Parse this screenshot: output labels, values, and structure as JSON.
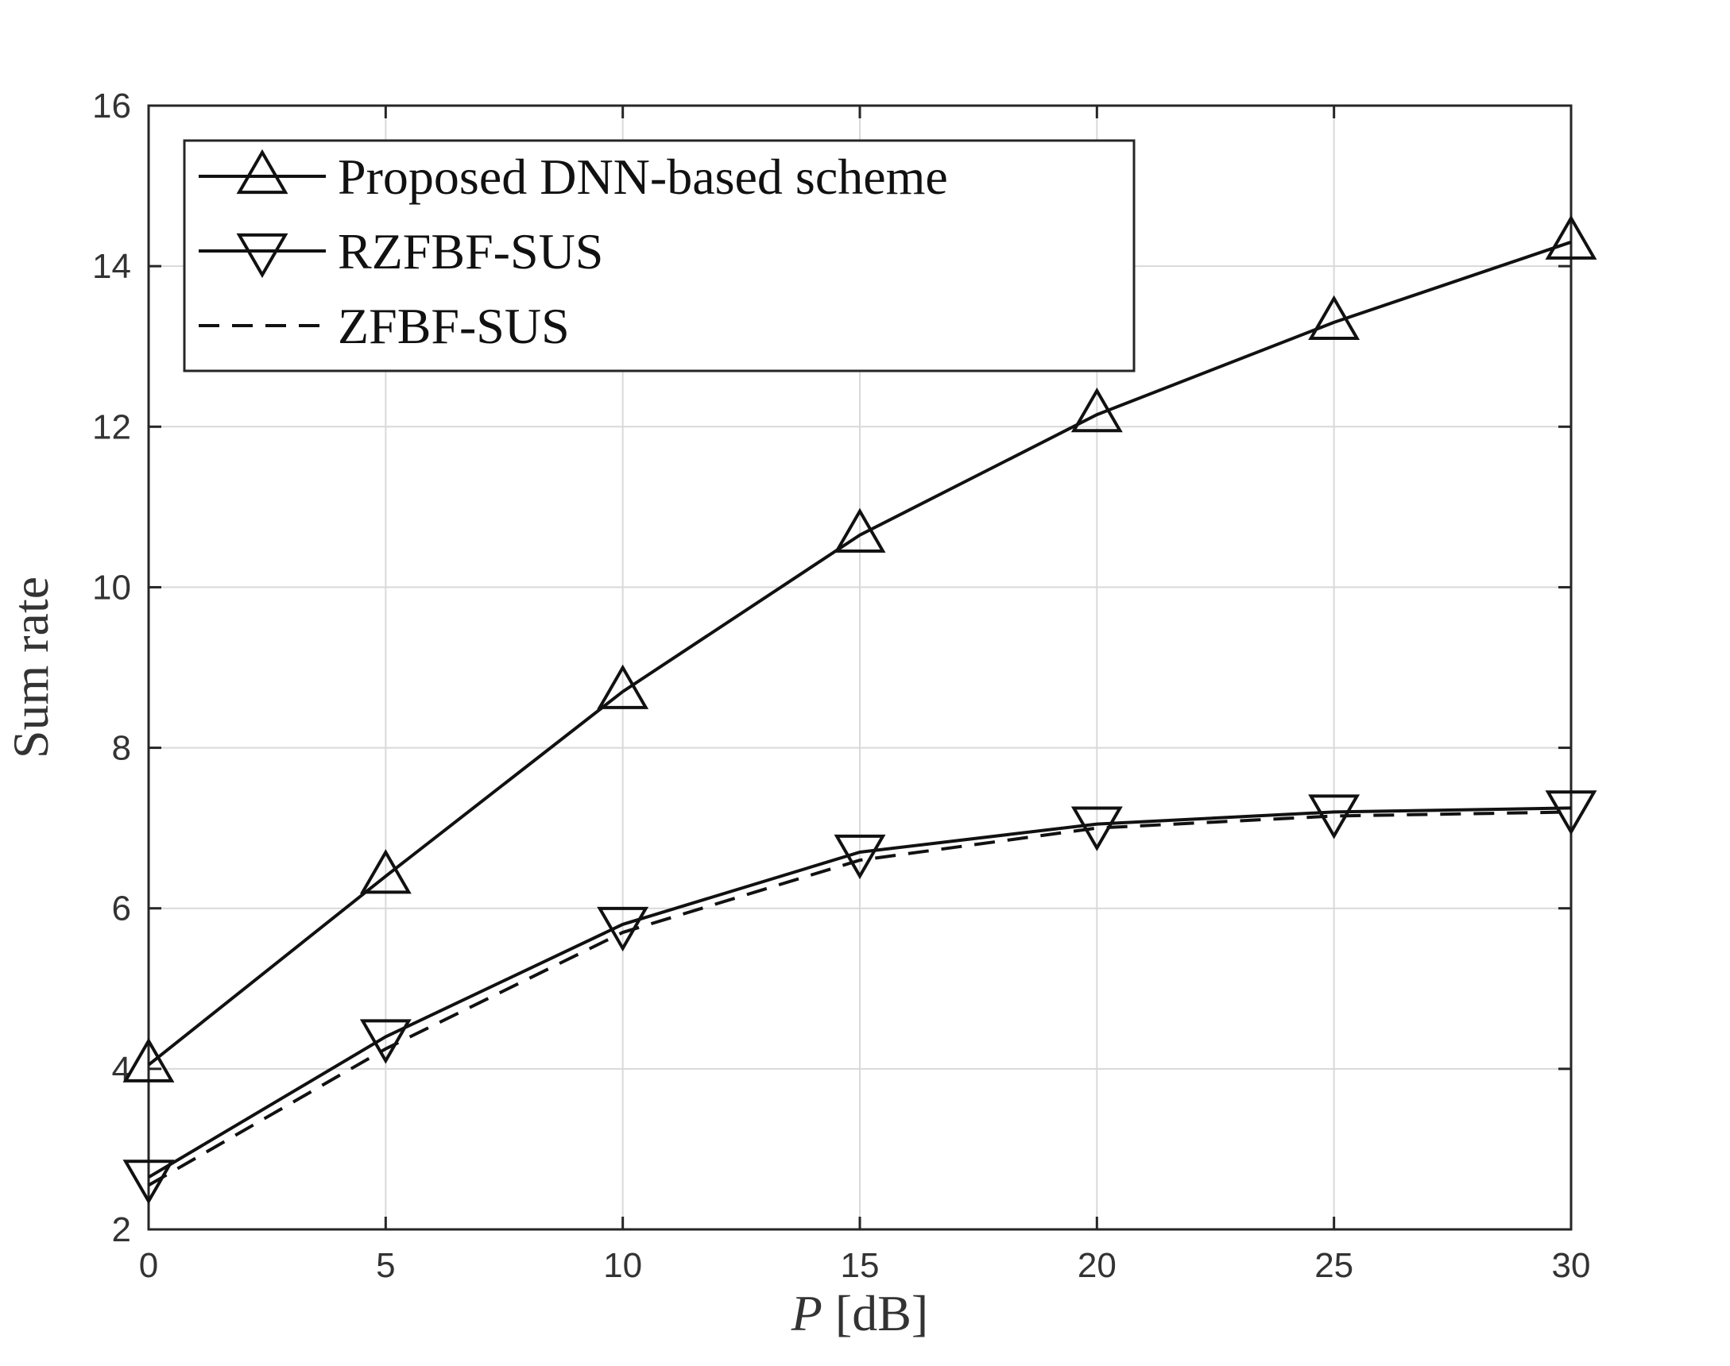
{
  "chart_data": {
    "type": "line",
    "x": [
      0,
      5,
      10,
      15,
      20,
      25,
      30
    ],
    "series": [
      {
        "name": "Proposed DNN-based scheme",
        "values": [
          4.05,
          6.4,
          8.7,
          10.65,
          12.15,
          13.3,
          14.3
        ],
        "marker": "triangle-up",
        "line": "solid",
        "color": "#111111"
      },
      {
        "name": "RZFBF-SUS",
        "values": [
          2.65,
          4.4,
          5.8,
          6.7,
          7.05,
          7.2,
          7.25
        ],
        "marker": "triangle-down",
        "line": "solid",
        "color": "#111111"
      },
      {
        "name": "ZFBF-SUS",
        "values": [
          2.55,
          4.25,
          5.7,
          6.6,
          7.0,
          7.15,
          7.2
        ],
        "marker": "none",
        "line": "dashed",
        "color": "#111111"
      }
    ],
    "xlabel_italic": "P",
    "xlabel_rest": " [dB]",
    "ylabel": "Sum rate",
    "xlim": [
      0,
      30
    ],
    "ylim": [
      2,
      16
    ],
    "xticks": [
      0,
      5,
      10,
      15,
      20,
      25,
      30
    ],
    "yticks": [
      2,
      4,
      6,
      8,
      10,
      12,
      14,
      16
    ],
    "grid": true,
    "legend_position": "top-left"
  }
}
